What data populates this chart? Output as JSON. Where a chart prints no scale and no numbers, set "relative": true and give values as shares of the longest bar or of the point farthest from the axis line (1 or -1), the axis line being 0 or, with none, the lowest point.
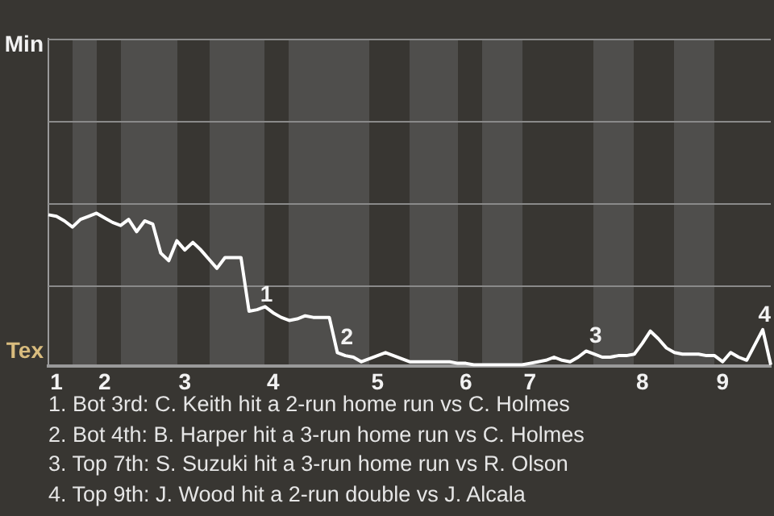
{
  "chart_data": {
    "type": "line",
    "relative": true,
    "marker": "none",
    "line_style": "solid",
    "legend": false,
    "categories": [
      null,
      "1",
      null,
      null,
      null,
      null,
      null,
      "2",
      null,
      null,
      null,
      null,
      null,
      null,
      null,
      null,
      null,
      "3",
      null,
      null,
      null,
      null,
      null,
      null,
      null,
      null,
      null,
      null,
      "4",
      null,
      null,
      null,
      null,
      null,
      null,
      null,
      null,
      null,
      null,
      null,
      null,
      "5",
      null,
      null,
      null,
      null,
      null,
      null,
      null,
      null,
      null,
      null,
      "6",
      null,
      null,
      null,
      null,
      null,
      null,
      null,
      "7",
      null,
      null,
      null,
      null,
      null,
      null,
      null,
      null,
      null,
      null,
      null,
      null,
      null,
      "8",
      null,
      null,
      null,
      null,
      null,
      null,
      null,
      null,
      null,
      "9",
      null,
      null,
      null,
      null,
      null,
      null
    ],
    "ref_lines": [
      {
        "axis": "y",
        "value": 0.53,
        "label": null,
        "color": "#8a8a8a"
      },
      {
        "axis": "y",
        "value": 1.07,
        "label": null,
        "color": "#8a8a8a"
      },
      {
        "axis": "y",
        "value": 1.6,
        "label": null,
        "color": "#8a8a8a"
      },
      {
        "axis": "y",
        "value": 2.14,
        "label": null,
        "color": "#8a8a8a"
      }
    ],
    "series": [
      {
        "color": "#ffffff",
        "values": [
          0.99,
          0.98,
          0.95,
          0.91,
          0.96,
          0.98,
          1,
          0.97,
          0.94,
          0.92,
          0.96,
          0.88,
          0.95,
          0.93,
          0.74,
          0.69,
          0.82,
          0.76,
          0.81,
          0.76,
          0.7,
          0.64,
          0.71,
          0.71,
          0.71,
          0.36,
          0.37,
          0.39,
          0.35,
          0.32,
          0.3,
          0.31,
          0.33,
          0.32,
          0.32,
          0.32,
          0.09,
          0.07,
          0.06,
          0.03,
          0.05,
          0.07,
          0.09,
          0.07,
          0.05,
          0.03,
          0.03,
          0.03,
          0.03,
          0.03,
          0.03,
          0.02,
          0.02,
          0.01,
          0.01,
          0.01,
          0.01,
          0.01,
          0.01,
          0.01,
          0.02,
          0.03,
          0.04,
          0.06,
          0.04,
          0.03,
          0.06,
          0.1,
          0.08,
          0.06,
          0.06,
          0.07,
          0.07,
          0.08,
          0.15,
          0.23,
          0.18,
          0.12,
          0.09,
          0.08,
          0.08,
          0.08,
          0.07,
          0.07,
          0.03,
          0.09,
          0.06,
          0.04,
          0.14,
          0.24,
          0.01
        ]
      }
    ],
    "annotations": [
      "Min",
      "Tex",
      {
        "text": "1",
        "y": 0.37
      },
      {
        "text": "2",
        "y": 0.09
      },
      {
        "text": "3",
        "y": 0.1
      },
      {
        "text": "4",
        "y": 0.24
      },
      "1. Bot 3rd: C. Keith hit a 2-run home run vs C. Holmes",
      "2. Bot 4th: B. Harper hit a 3-run home run vs C. Holmes",
      "3. Top 7th: S. Suzuki hit a 3-run home run vs R. Olson",
      "4. Top 9th: J. Wood hit a 2-run double vs J. Alcala"
    ]
  }
}
